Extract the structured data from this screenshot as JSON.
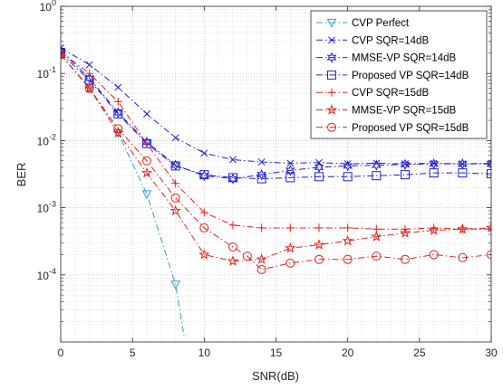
{
  "chart_data": {
    "type": "line",
    "xlabel": "SNR(dB)",
    "ylabel": "BER",
    "xlim": [
      0,
      30
    ],
    "ylim": [
      1e-05,
      1
    ],
    "yscale": "log",
    "grid": true,
    "legend_position": "top-right",
    "x_ticks": [
      0,
      5,
      10,
      15,
      20,
      25,
      30
    ],
    "x_tick_labels": [
      "0",
      "5",
      "10",
      "15",
      "20",
      "25",
      "30"
    ],
    "y_ticks": [
      0.0001,
      0.001,
      0.01,
      0.1,
      1
    ],
    "y_tick_labels": [
      {
        "base": "10",
        "exp": "-4"
      },
      {
        "base": "10",
        "exp": "-3"
      },
      {
        "base": "10",
        "exp": "-2"
      },
      {
        "base": "10",
        "exp": "-1"
      },
      {
        "base": "10",
        "exp": "0"
      }
    ],
    "series": [
      {
        "name": "CVP Perfect",
        "color": "#2a9fc4",
        "marker": "triangle-down",
        "dash": "dashdot",
        "x": [
          0,
          2,
          4,
          6,
          8,
          8.6
        ],
        "y": [
          0.19,
          0.062,
          0.013,
          0.0016,
          7.2e-05,
          1.2e-05
        ]
      },
      {
        "name": "CVP SQR=14dB",
        "color": "#1f1fd6",
        "marker": "x",
        "dash": "dashdot",
        "x": [
          0,
          2,
          4,
          6,
          8,
          10,
          12,
          14,
          16,
          18,
          20,
          22,
          24,
          26,
          28,
          30
        ],
        "y": [
          0.24,
          0.135,
          0.062,
          0.025,
          0.011,
          0.0065,
          0.0052,
          0.0048,
          0.0046,
          0.0047,
          0.0045,
          0.0046,
          0.0045,
          0.0046,
          0.0045,
          0.0046
        ]
      },
      {
        "name": "MMSE-VP SQR=14dB",
        "color": "#1f1fd6",
        "marker": "star6",
        "dash": "dashdot",
        "x": [
          0,
          2,
          4,
          6,
          8,
          10,
          12,
          14,
          16,
          18,
          20,
          22,
          24,
          26,
          28,
          30
        ],
        "y": [
          0.22,
          0.085,
          0.026,
          0.0095,
          0.0043,
          0.003,
          0.0027,
          0.0031,
          0.0036,
          0.004,
          0.0042,
          0.0043,
          0.0044,
          0.0045,
          0.0045,
          0.0045
        ]
      },
      {
        "name": "Proposed VP SQR=14dB",
        "color": "#1f1fd6",
        "marker": "square",
        "dash": "dashdot",
        "x": [
          0,
          2,
          4,
          6,
          8,
          10,
          12,
          14,
          16,
          18,
          20,
          22,
          24,
          26,
          28,
          30
        ],
        "y": [
          0.2,
          0.08,
          0.025,
          0.009,
          0.0042,
          0.0031,
          0.0028,
          0.0027,
          0.0028,
          0.0029,
          0.0029,
          0.003,
          0.0031,
          0.0033,
          0.0033,
          0.0032
        ]
      },
      {
        "name": "CVP SQR=15dB",
        "color": "#e0201e",
        "marker": "plus",
        "dash": "dashdot",
        "x": [
          0,
          2,
          4,
          6,
          8,
          10,
          12,
          14,
          16,
          18,
          20,
          22,
          24,
          26,
          28,
          30
        ],
        "y": [
          0.21,
          0.1,
          0.038,
          0.009,
          0.0023,
          0.00085,
          0.00055,
          0.0005,
          0.0005,
          0.0005,
          0.0005,
          0.00048,
          0.00048,
          0.0005,
          0.00048,
          0.00048
        ]
      },
      {
        "name": "MMSE-VP SQR=15dB",
        "color": "#e0201e",
        "marker": "star5",
        "dash": "dashdot",
        "x": [
          0,
          2,
          4,
          6,
          8,
          10,
          12,
          14,
          16,
          18,
          20,
          22,
          24,
          26,
          28,
          30
        ],
        "y": [
          0.19,
          0.06,
          0.013,
          0.0033,
          0.0009,
          0.0002,
          0.00016,
          0.00017,
          0.00025,
          0.00028,
          0.00032,
          0.00037,
          0.00042,
          0.00046,
          0.00048,
          0.0005
        ]
      },
      {
        "name": "Proposed VP SQR=15dB",
        "color": "#e0201e",
        "marker": "circle",
        "dash": "dashdot",
        "x": [
          0,
          2,
          4,
          6,
          8,
          10,
          12,
          13,
          14,
          16,
          18,
          20,
          22,
          24,
          26,
          28,
          30
        ],
        "y": [
          0.19,
          0.06,
          0.015,
          0.005,
          0.0014,
          0.0005,
          0.00026,
          0.00019,
          0.00012,
          0.00015,
          0.00017,
          0.00017,
          0.00019,
          0.00017,
          0.0002,
          0.00018,
          0.0002
        ]
      }
    ]
  }
}
